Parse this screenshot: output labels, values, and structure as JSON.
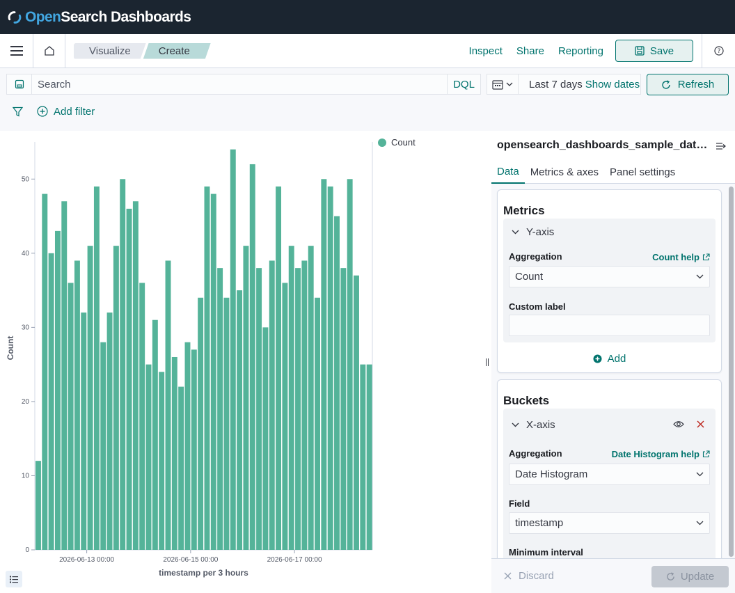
{
  "header": {
    "logo_pre": "Open",
    "logo_post": "Search Dashboards"
  },
  "breadcrumbs": [
    "Visualize",
    "Create"
  ],
  "app_actions": {
    "inspect": "Inspect",
    "share": "Share",
    "reporting": "Reporting",
    "save": "Save"
  },
  "query": {
    "search_placeholder": "Search",
    "language": "DQL",
    "date_range": "Last 7 days",
    "show_dates": "Show dates",
    "refresh": "Refresh",
    "add_filter": "Add filter"
  },
  "sidebar": {
    "title": "opensearch_dashboards_sample_data_logs",
    "tabs": [
      "Data",
      "Metrics & axes",
      "Panel settings"
    ],
    "metrics": {
      "title": "Metrics",
      "agg_name": "Y-axis",
      "agg_label": "Aggregation",
      "help": "Count help",
      "value": "Count",
      "custom_label": "Custom label",
      "add": "Add"
    },
    "buckets": {
      "title": "Buckets",
      "agg_name": "X-axis",
      "agg_label": "Aggregation",
      "help": "Date Histogram help",
      "value": "Date Histogram",
      "field_label": "Field",
      "field_value": "timestamp",
      "min_interval": "Minimum interval"
    },
    "discard": "Discard",
    "update": "Update"
  },
  "colors": {
    "bar": "#54b399",
    "accent": "#00736d",
    "header_bg": "#1b2530"
  },
  "chart_data": {
    "type": "bar",
    "title": "",
    "xlabel": "timestamp per 3 hours",
    "ylabel": "Count",
    "ylim": [
      0,
      55
    ],
    "yticks": [
      0,
      10,
      20,
      30,
      40,
      50
    ],
    "xtick_labels": [
      "2026-06-13 00:00",
      "2026-06-15 00:00",
      "2026-06-17 00:00"
    ],
    "xtick_bar_index": [
      7,
      23,
      39
    ],
    "legend_position": "top-right",
    "series": [
      {
        "name": "Count",
        "values": [
          12,
          48,
          40,
          43,
          47,
          36,
          39,
          32,
          41,
          49,
          28,
          32,
          41,
          50,
          46,
          47,
          36,
          25,
          31,
          24,
          39,
          26,
          22,
          28,
          27,
          34,
          49,
          48,
          38,
          34,
          54,
          35,
          41,
          52,
          38,
          30,
          39,
          49,
          36,
          41,
          38,
          39,
          41,
          34,
          50,
          49,
          45,
          38,
          50,
          37,
          25,
          25
        ]
      }
    ]
  }
}
